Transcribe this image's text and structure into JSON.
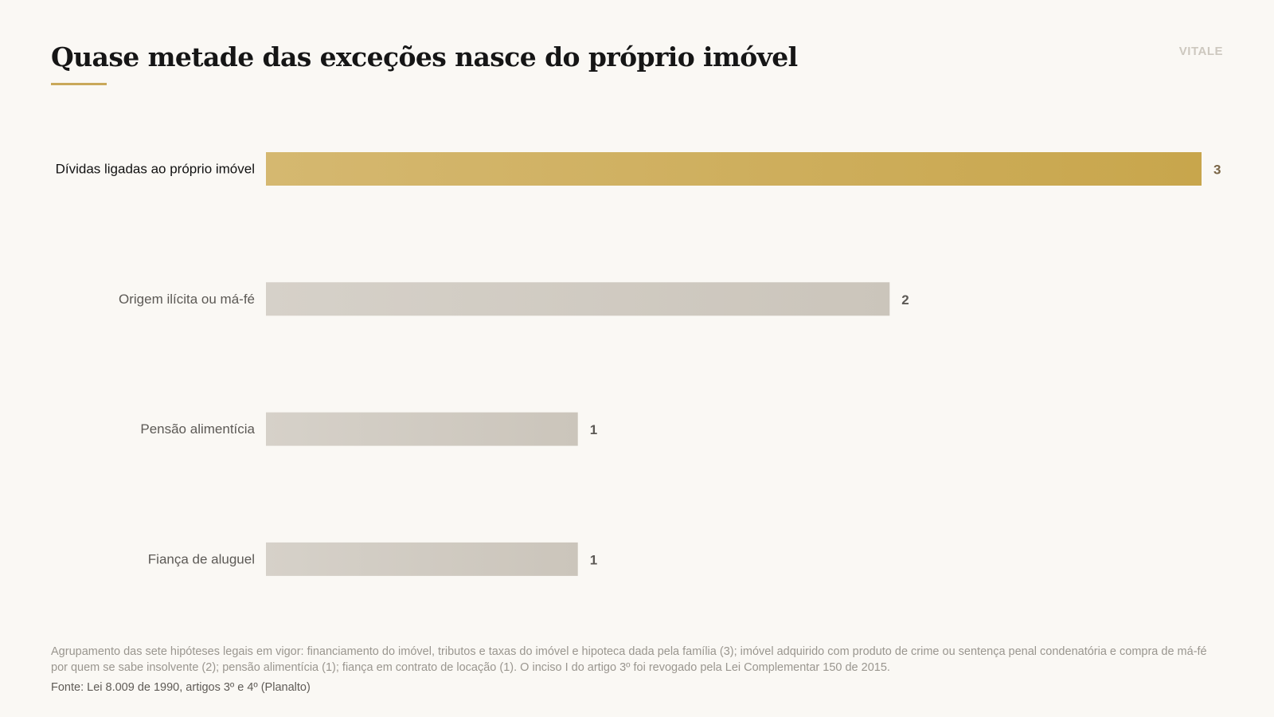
{
  "brand": "VITALE",
  "title": "Quase metade das exceções nasce do próprio imóvel",
  "colors": {
    "accent_start": "#d5b870",
    "accent_end": "#c8a64c",
    "muted_start": "#d6d1c9",
    "muted_end": "#cbc5bb",
    "label_highlight": "#111111",
    "label_muted": "#5c5955",
    "value_highlight": "#7a6546",
    "value_muted": "#5c5955"
  },
  "chart_data": {
    "type": "bar",
    "orientation": "horizontal",
    "categories": [
      "Dívidas ligadas ao próprio imóvel",
      "Origem ilícita ou má-fé",
      "Pensão alimentícia",
      "Fiança de aluguel"
    ],
    "values": [
      3,
      2,
      1,
      1
    ],
    "highlight_index": 0,
    "xlim": [
      0,
      3
    ],
    "grid": false
  },
  "note": "Agrupamento das sete hipóteses legais em vigor: financiamento do imóvel, tributos e taxas do imóvel e hipoteca dada pela família (3); imóvel adquirido com produto de crime ou sentença penal condenatória e compra de má-fé por quem se sabe insolvente (2); pensão alimentícia (1); fiança em contrato de locação (1). O inciso I do artigo 3º foi revogado pela Lei Complementar 150 de 2015.",
  "source": "Fonte: Lei 8.009 de 1990, artigos 3º e 4º (Planalto)"
}
